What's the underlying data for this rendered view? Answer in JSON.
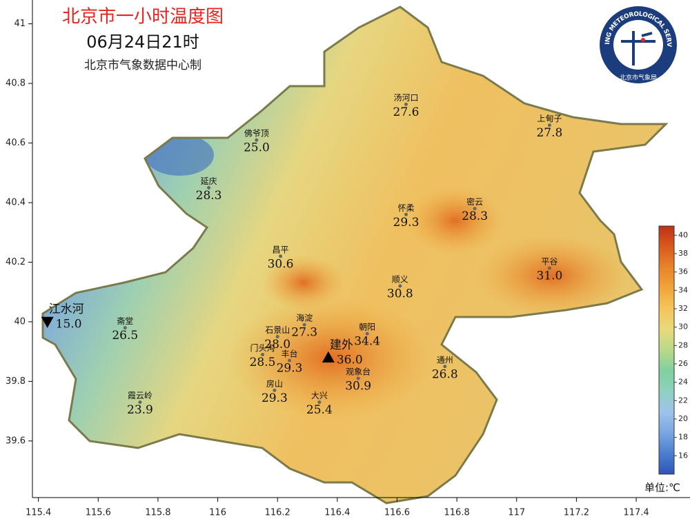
{
  "header": {
    "title": "北京市一小时温度图",
    "subtitle": "06月24日21时",
    "credit": "北京市气象数据中心制"
  },
  "logo": {
    "ring_text": "BEIJING METEOROLOGICAL SERVICE",
    "org": "北京市气象局"
  },
  "axes": {
    "xlim": [
      115.38,
      117.58
    ],
    "ylim": [
      39.41,
      41.08
    ],
    "xticks": [
      115.4,
      115.6,
      115.8,
      116,
      116.2,
      116.4,
      116.6,
      116.8,
      117,
      117.2,
      117.4
    ],
    "yticks": [
      39.6,
      39.8,
      40,
      40.2,
      40.4,
      40.6,
      40.8,
      41
    ]
  },
  "stations": [
    {
      "name": "汤河口",
      "lon": 116.63,
      "lat": 40.73,
      "value": 27.6
    },
    {
      "name": "上甸子",
      "lon": 117.11,
      "lat": 40.66,
      "value": 27.8
    },
    {
      "name": "佛爷顶",
      "lon": 116.13,
      "lat": 40.61,
      "value": 25.0,
      "value_label": "25.0"
    },
    {
      "name": "延庆",
      "lon": 115.97,
      "lat": 40.45,
      "value": 28.3
    },
    {
      "name": "怀柔",
      "lon": 116.63,
      "lat": 40.36,
      "value": 29.3
    },
    {
      "name": "密云",
      "lon": 116.86,
      "lat": 40.38,
      "value": 28.3
    },
    {
      "name": "昌平",
      "lon": 116.21,
      "lat": 40.22,
      "value": 30.6
    },
    {
      "name": "平谷",
      "lon": 117.11,
      "lat": 40.18,
      "value": 31.0,
      "value_label": "31.0"
    },
    {
      "name": "顺义",
      "lon": 116.61,
      "lat": 40.12,
      "value": 30.8
    },
    {
      "name": "江水河",
      "lon": 115.43,
      "lat": 40.0,
      "value": 15.0,
      "value_label": "15.0",
      "symbol": "triangle-down"
    },
    {
      "name": "斋堂",
      "lon": 115.69,
      "lat": 39.98,
      "value": 26.5
    },
    {
      "name": "海淀",
      "lon": 116.29,
      "lat": 39.99,
      "value": 27.3
    },
    {
      "name": "朝阳",
      "lon": 116.5,
      "lat": 39.96,
      "value": 34.4
    },
    {
      "name": "石景山",
      "lon": 116.2,
      "lat": 39.95,
      "value": 28.0,
      "value_label": "28.0"
    },
    {
      "name": "建外",
      "lon": 116.37,
      "lat": 39.88,
      "value": 36.0,
      "value_label": "36.0",
      "symbol": "triangle-up"
    },
    {
      "name": "门头沟",
      "lon": 116.15,
      "lat": 39.89,
      "value": 28.5
    },
    {
      "name": "丰台",
      "lon": 116.24,
      "lat": 39.87,
      "value": 29.3
    },
    {
      "name": "通州",
      "lon": 116.76,
      "lat": 39.85,
      "value": 26.8
    },
    {
      "name": "观象台",
      "lon": 116.47,
      "lat": 39.81,
      "value": 30.9
    },
    {
      "name": "房山",
      "lon": 116.19,
      "lat": 39.77,
      "value": 29.3
    },
    {
      "name": "大兴",
      "lon": 116.34,
      "lat": 39.73,
      "value": 25.4
    },
    {
      "name": "霞云岭",
      "lon": 115.74,
      "lat": 39.73,
      "value": 23.9
    }
  ],
  "colorbar": {
    "lim": [
      14,
      41
    ],
    "ticks": [
      16,
      18,
      20,
      22,
      24,
      26,
      28,
      30,
      32,
      34,
      36,
      38,
      40
    ],
    "colors": [
      "#2f55b5",
      "#4a7fd0",
      "#7aa6e0",
      "#9ec3ea",
      "#8fd1c0",
      "#7fcf9f",
      "#b9d98a",
      "#e8d97a",
      "#f5c55c",
      "#f0a53a",
      "#e8842a",
      "#d95a1e",
      "#c0301a"
    ],
    "unit": "单位:℃"
  }
}
